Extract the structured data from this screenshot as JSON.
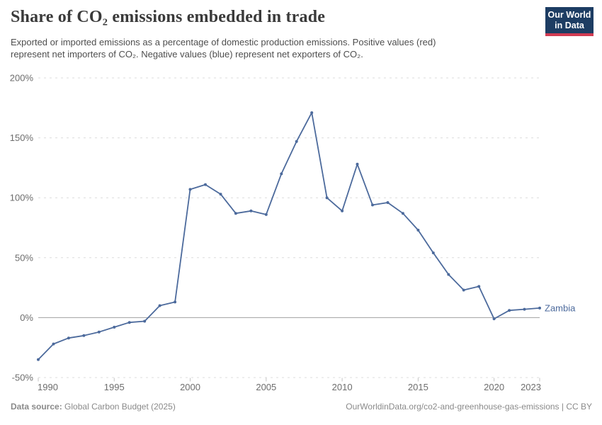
{
  "header": {
    "title": "Share of CO₂ emissions embedded in trade",
    "subtitle_line1": "Exported or imported emissions as a percentage of domestic production emissions. Positive values (red)",
    "subtitle_line2": "represent net importers of CO₂. Negative values (blue) represent net exporters of CO₂."
  },
  "logo": {
    "line1": "Our World",
    "line2": "in Data",
    "bg_color": "#1d3d63",
    "stripe_color": "#d13b52"
  },
  "chart_data": {
    "type": "line",
    "title": "Share of CO₂ emissions embedded in trade",
    "xlabel": "",
    "ylabel": "",
    "xlim": [
      1990,
      2023
    ],
    "ylim": [
      -50,
      200
    ],
    "grid": "horizontal-dashed",
    "zero_line": true,
    "legend_position": "end-of-line-label",
    "x": [
      1990,
      1991,
      1992,
      1993,
      1994,
      1995,
      1996,
      1997,
      1998,
      1999,
      2000,
      2001,
      2002,
      2003,
      2004,
      2005,
      2006,
      2007,
      2008,
      2009,
      2010,
      2011,
      2012,
      2013,
      2014,
      2015,
      2016,
      2017,
      2018,
      2019,
      2020,
      2021,
      2022,
      2023
    ],
    "series": [
      {
        "name": "Zambia",
        "color": "#4c6a9c",
        "values": [
          -35,
          -22,
          -17,
          -15,
          -12,
          -8,
          -4,
          -3,
          10,
          13,
          107,
          111,
          103,
          87,
          89,
          86,
          120,
          147,
          171,
          100,
          89,
          128,
          94,
          96,
          87,
          73,
          54,
          36,
          23,
          26,
          -1,
          6,
          7,
          8
        ]
      }
    ],
    "yticks": [
      {
        "value": 200,
        "label": "200%"
      },
      {
        "value": 150,
        "label": "150%"
      },
      {
        "value": 100,
        "label": "100%"
      },
      {
        "value": 50,
        "label": "50%"
      },
      {
        "value": 0,
        "label": "0%"
      },
      {
        "value": -50,
        "label": "-50%"
      }
    ],
    "xticks": [
      {
        "value": 1990,
        "label": "1990"
      },
      {
        "value": 1995,
        "label": "1995"
      },
      {
        "value": 2000,
        "label": "2000"
      },
      {
        "value": 2005,
        "label": "2005"
      },
      {
        "value": 2010,
        "label": "2010"
      },
      {
        "value": 2015,
        "label": "2015"
      },
      {
        "value": 2020,
        "label": "2020"
      },
      {
        "value": 2023,
        "label": "2023"
      }
    ]
  },
  "footer": {
    "datasource_label": "Data source:",
    "datasource_value": "Global Carbon Budget (2025)",
    "credit": "OurWorldinData.org/co2-and-greenhouse-gas-emissions | CC BY"
  },
  "colors": {
    "line": "#4c6a9c",
    "gridline": "#dcdcdc",
    "zero_line": "#a0a0a0",
    "axis_text": "#6d6d6d",
    "title": "#3a3a3a",
    "subtitle": "#4e4e4e",
    "footer_text": "#8a8a8a"
  }
}
